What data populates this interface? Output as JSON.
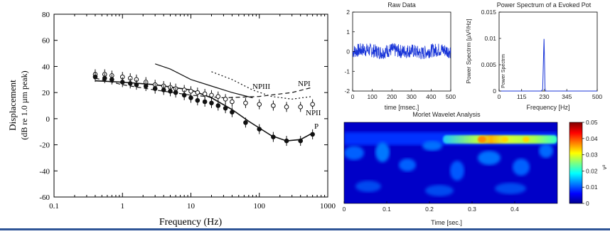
{
  "displacement_chart": {
    "xlabel": "Frequency (Hz)",
    "ylabel_line1": "Displacement",
    "ylabel_line2": "(dB re 1.0 µm peak)",
    "x_ticks": [
      "0.1",
      "1",
      "10",
      "100",
      "1000"
    ],
    "y_ticks": [
      "80",
      "60",
      "40",
      "20",
      "0",
      "-20",
      "-40",
      "-60"
    ],
    "curve_labels": [
      "NPIII",
      "NPI",
      "NPII",
      "P"
    ]
  },
  "raw_data": {
    "title": "Raw Data",
    "xlabel": "time [msec.]",
    "x_ticks": [
      "0",
      "100",
      "200",
      "300",
      "400",
      "500"
    ],
    "y_ticks": [
      "2",
      "1",
      "0",
      "-1",
      "-2"
    ]
  },
  "power_spectrum": {
    "title": "Power Spectrum of a Evoked Pot",
    "ylabel": "Power Spectrm [µV²/Hz]",
    "ylabel_inner": "Power Spectrm",
    "xlabel": "Frequency [Hz]",
    "x_ticks": [
      "0",
      "115",
      "230",
      "345",
      "500"
    ],
    "y_ticks": [
      "0.015",
      "0.01",
      "0.005",
      "0"
    ]
  },
  "wavelet": {
    "title": "Morlet Wavelet Analysis",
    "xlabel": "Time [sec.]",
    "x_ticks": [
      "0",
      "0.1",
      "0.2",
      "0.3",
      "0.4"
    ],
    "colorbar_ticks": [
      "0.05",
      "0.04",
      "0.03",
      "0.02",
      "0.01",
      "0"
    ],
    "colorbar_label_fragment": "v²"
  },
  "chart_data": [
    {
      "type": "line",
      "title": "",
      "xlabel": "Frequency (Hz)",
      "ylabel": "Displacement (dB re 1.0 µm peak)",
      "x_scale": "log",
      "xlim": [
        0.1,
        1000
      ],
      "ylim": [
        -60,
        80
      ],
      "grid": false,
      "series": [
        {
          "name": "NPIII",
          "style": "solid",
          "x": [
            3,
            5,
            10,
            20,
            40,
            80
          ],
          "y": [
            42,
            38,
            30,
            25,
            20,
            16
          ]
        },
        {
          "name": "NPI",
          "style": "dashed",
          "x": [
            0.4,
            1,
            3,
            10,
            30,
            100,
            300,
            600
          ],
          "y": [
            31,
            26,
            22,
            18,
            16,
            17,
            20,
            24
          ]
        },
        {
          "name": "NPII",
          "style": "dotted",
          "x": [
            20,
            40,
            80,
            150,
            300,
            600
          ],
          "y": [
            36,
            30,
            22,
            17,
            15,
            17
          ]
        },
        {
          "name": "P",
          "style": "solid",
          "x": [
            0.4,
            1,
            3,
            10,
            20,
            40,
            70,
            150,
            250,
            400,
            600
          ],
          "y": [
            29,
            28,
            26,
            22,
            16,
            7,
            -2,
            -13,
            -17,
            -16,
            -11
          ]
        },
        {
          "name": "",
          "style": "open-circles",
          "x": [
            0.4,
            0.55,
            0.7,
            1,
            1.3,
            1.6,
            2.2,
            3,
            4,
            5,
            6,
            8,
            10,
            12.5,
            16,
            20,
            25,
            32,
            40,
            63,
            100,
            160,
            250,
            400,
            600
          ],
          "y": [
            34,
            34,
            33,
            32,
            31,
            30,
            28,
            26,
            25,
            24,
            23,
            22,
            21,
            20,
            19,
            18,
            17,
            15,
            13,
            12,
            11,
            10,
            9,
            9,
            11
          ]
        },
        {
          "name": "",
          "style": "filled-circles",
          "x": [
            0.4,
            0.55,
            0.7,
            1,
            1.3,
            1.6,
            2.2,
            3,
            4,
            5,
            6,
            8,
            10,
            12.5,
            16,
            20,
            25,
            32,
            40,
            63,
            100,
            160,
            250,
            400,
            600
          ],
          "y": [
            32,
            31,
            30,
            28,
            27,
            26,
            25,
            23,
            22,
            21,
            20,
            18,
            16,
            14,
            13,
            12,
            10,
            8,
            5,
            -3,
            -8,
            -14,
            -17,
            -17,
            -12
          ]
        }
      ]
    },
    {
      "type": "line",
      "title": "Raw Data",
      "xlabel": "time [msec.]",
      "ylabel": "",
      "xlim": [
        0,
        500
      ],
      "ylim": [
        -2,
        2
      ],
      "series": [
        {
          "name": "",
          "x": [
            0,
            50,
            100,
            150,
            200,
            250,
            300,
            350,
            400,
            450,
            500
          ],
          "y": [
            0,
            0.1,
            0.05,
            -0.05,
            0.1,
            0,
            0.05,
            -0.1,
            0.05,
            0.1,
            0
          ],
          "noise_amplitude": 0.35
        }
      ]
    },
    {
      "type": "line",
      "title": "Power Spectrum of a Evoked Pot",
      "xlabel": "Frequency [Hz]",
      "ylabel": "Power Spectrm [µV²/Hz]",
      "xlim": [
        0,
        500
      ],
      "ylim": [
        0,
        0.015
      ],
      "series": [
        {
          "name": "",
          "x": [
            0,
            215,
            222,
            226,
            229,
            231,
            234,
            238,
            500
          ],
          "y": [
            0,
            0,
            0.0003,
            0.006,
            0.0099,
            0.0063,
            0.0005,
            0,
            0
          ]
        }
      ]
    },
    {
      "type": "heatmap",
      "title": "Morlet Wavelet Analysis",
      "xlabel": "Time [sec.]",
      "xlim": [
        0,
        0.5
      ],
      "zlim": [
        0,
        0.05
      ],
      "colormap": "jet",
      "bands": [
        {
          "t_start": 0.24,
          "t_end": 0.5,
          "row": 0.2,
          "value": 0.035,
          "peak_time": 0.32,
          "peak_value": 0.045
        },
        {
          "t_start": 0.0,
          "t_end": 0.5,
          "row": 0.6,
          "value": 0.01
        }
      ]
    }
  ],
  "colors": {
    "axis": "#000000",
    "raw_trace": "#1a36d8",
    "spectrum_trace": "#1a36d8",
    "page_rule": "#2f5597"
  }
}
